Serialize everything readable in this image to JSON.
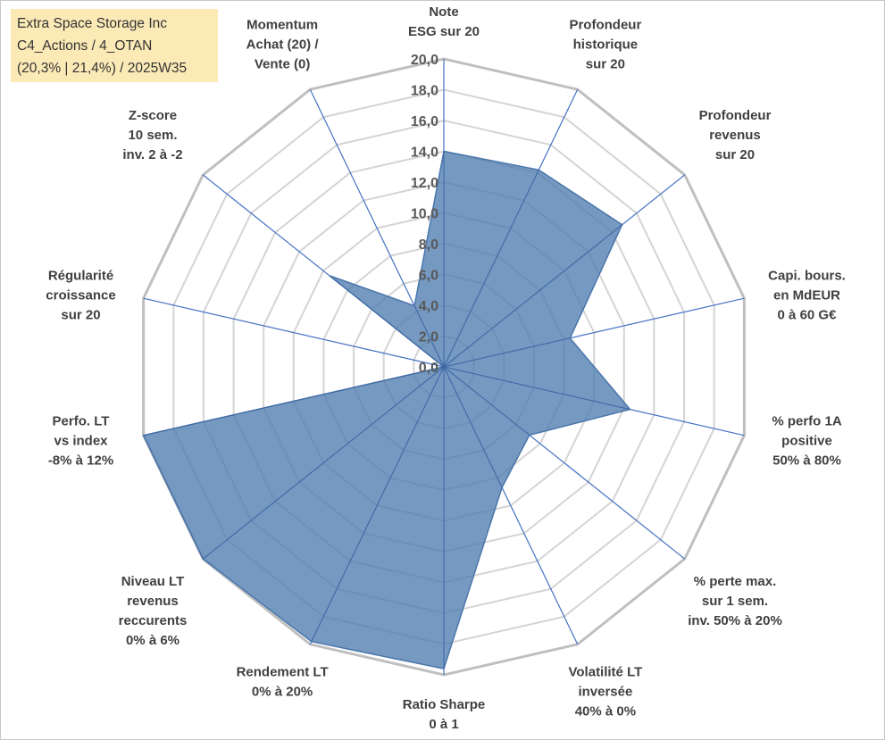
{
  "header": {
    "line1": "Extra Space Storage Inc",
    "line2": "C4_Actions / 4_OTAN",
    "line3": "(20,3% | 21,4%) / 2025W35"
  },
  "colors": {
    "fill": "#4f7cb0",
    "grid": "#c0c0c0",
    "spoke": "#4472c4",
    "title_bg": "#fbe9b6"
  },
  "chart_data": {
    "type": "radar",
    "rmin": 0,
    "rmax": 20,
    "tick_step": 2,
    "tick_labels": [
      "0,0",
      "2,0",
      "4,0",
      "6,0",
      "8,0",
      "10,0",
      "12,0",
      "14,0",
      "16,0",
      "18,0",
      "20,0"
    ],
    "axes": [
      {
        "label": [
          "Note",
          "ESG sur 20"
        ],
        "value": 14.0
      },
      {
        "label": [
          "Profondeur",
          "historique",
          "sur 20"
        ],
        "value": 14.2
      },
      {
        "label": [
          "Profondeur",
          "revenus",
          "sur 20"
        ],
        "value": 14.8
      },
      {
        "label": [
          "Capi. bours.",
          "en MdEUR",
          "0 à 60 G€"
        ],
        "value": 8.4
      },
      {
        "label": [
          "% perfo 1A",
          "positive",
          "50% à 80%"
        ],
        "value": 12.4
      },
      {
        "label": [
          "% perte max.",
          "sur 1 sem.",
          "inv. 50% à 20%"
        ],
        "value": 7.1
      },
      {
        "label": [
          "Volatilité LT",
          "inversée",
          "40% à 0%"
        ],
        "value": 8.7
      },
      {
        "label": [
          "Ratio Sharpe",
          "0 à 1"
        ],
        "value": 19.6
      },
      {
        "label": [
          "Rendement LT",
          "0% à 20%"
        ],
        "value": 19.8
      },
      {
        "label": [
          "Niveau LT",
          "revenus",
          "reccurents",
          "0% à 6%"
        ],
        "value": 20.0
      },
      {
        "label": [
          "Perfo. LT",
          "vs index",
          "-8% à 12%"
        ],
        "value": 20.0
      },
      {
        "label": [
          "Régularité",
          "croissance",
          "sur 20"
        ],
        "value": 0.0
      },
      {
        "label": [
          "Z-score",
          "10 sem.",
          "inv. 2 à -2"
        ],
        "value": 9.5
      },
      {
        "label": [
          "Momentum",
          "Achat (20) /",
          "Vente (0)"
        ],
        "value": 4.4
      }
    ]
  }
}
